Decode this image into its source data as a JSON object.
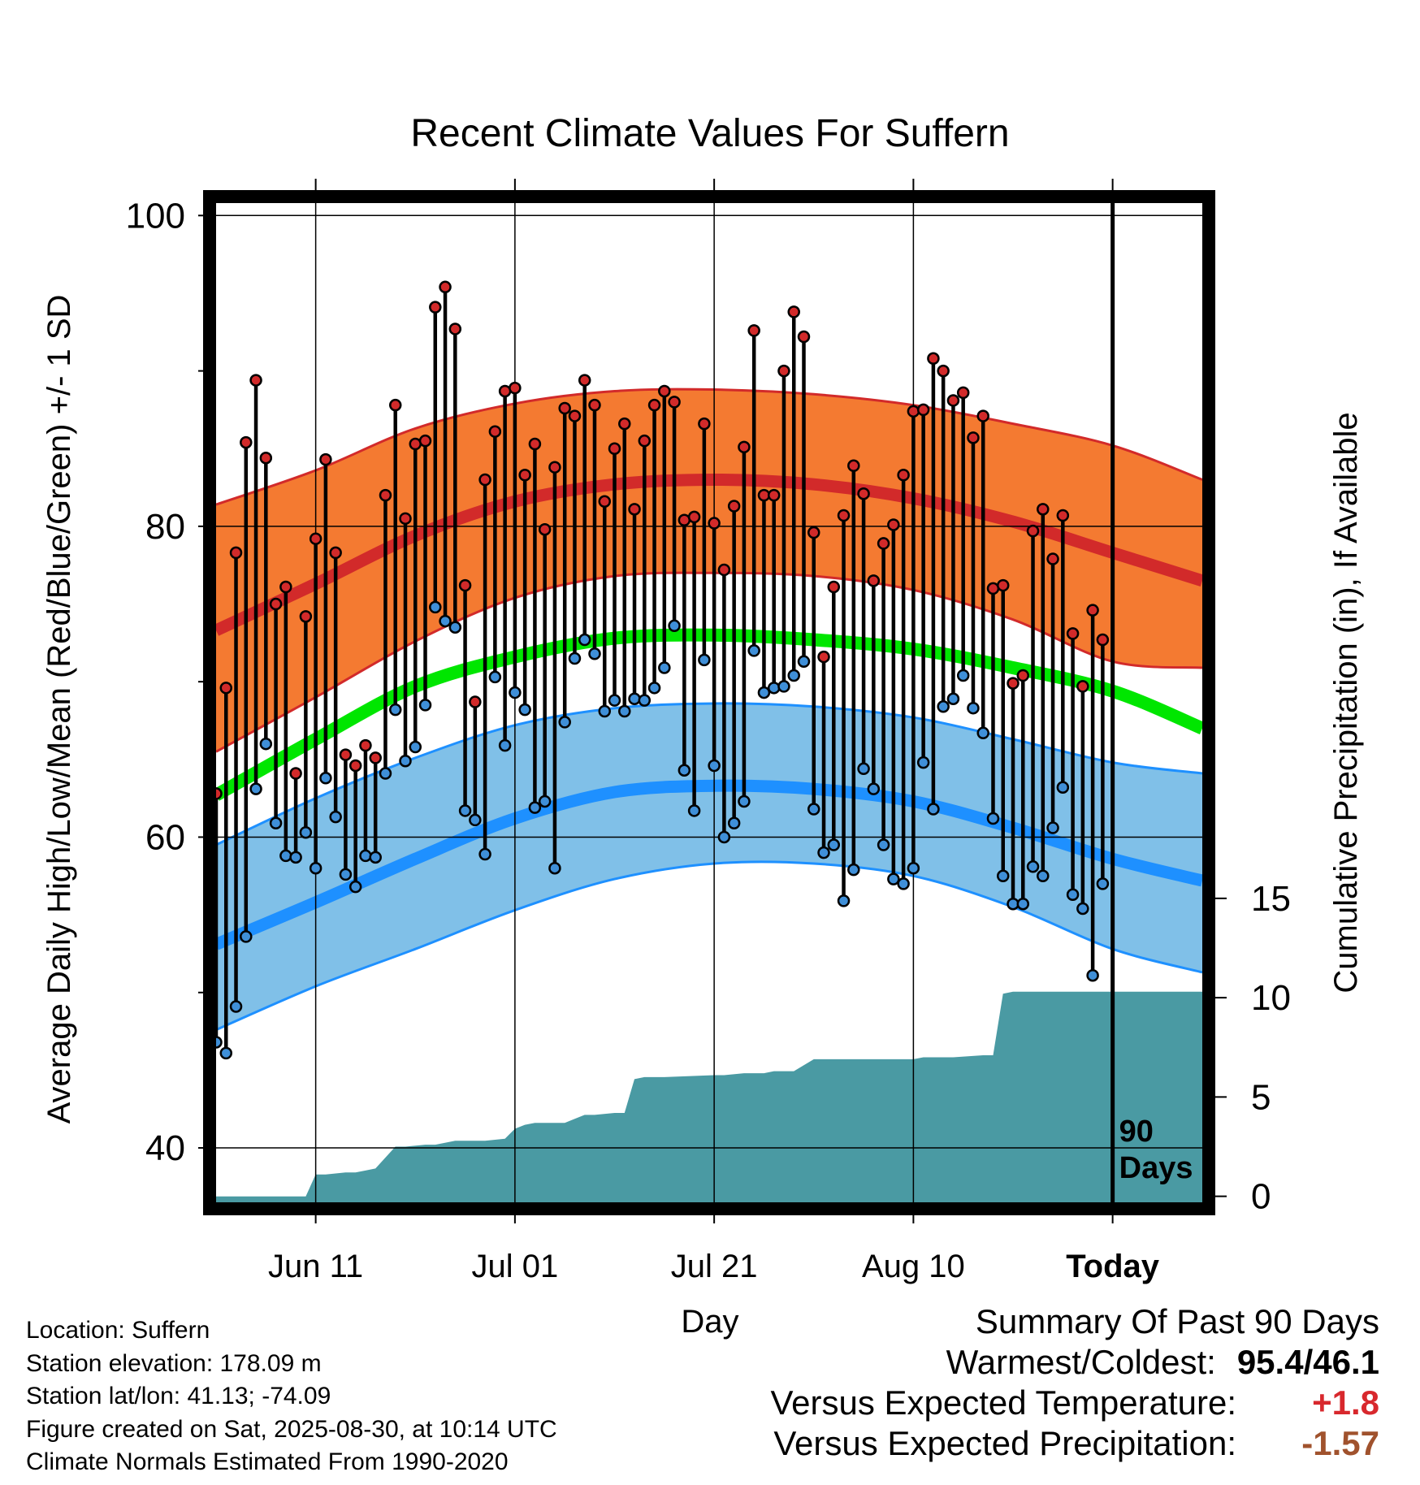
{
  "chart_data": {
    "type": "line",
    "title": "Recent Climate Values For Suffern",
    "xlabel": "Day",
    "ylabel": "Average Daily High/Low/Mean (Red/Blue/Green) +/- 1 SD",
    "y2label": "Cumulative Precipitation (in), If Available",
    "x_unit": "days before today",
    "xlim": [
      -90,
      9
    ],
    "ylim": [
      36.5,
      100.8
    ],
    "y_ticks": [
      "40",
      "60",
      "80",
      "100"
    ],
    "y_minor_ticks": [
      50,
      70,
      90
    ],
    "y2lim": [
      -0.3,
      50
    ],
    "y2_ticks": [
      "0",
      "5",
      "10",
      "15"
    ],
    "x_ticks": [
      {
        "label": "Jun 11",
        "x": -80
      },
      {
        "label": "Jul 01",
        "x": -60
      },
      {
        "label": "Jul 21",
        "x": -40
      },
      {
        "label": "Aug 10",
        "x": -20
      },
      {
        "label": "Today",
        "x": 0
      }
    ],
    "today_marker": {
      "x": 0,
      "label_line1": "90",
      "label_line2": "Days"
    },
    "grid": true,
    "normals": {
      "x": [
        -90,
        -80,
        -70,
        -60,
        -50,
        -40,
        -30,
        -20,
        -10,
        0,
        9
      ],
      "high_mean": [
        73.3,
        76.3,
        79.4,
        81.6,
        82.7,
        83.0,
        82.7,
        81.8,
        80.3,
        78.3,
        76.5
      ],
      "high_upper": [
        81.4,
        83.6,
        86.3,
        87.9,
        88.7,
        88.8,
        88.5,
        87.8,
        86.6,
        85.2,
        83.0
      ],
      "high_lower": [
        65.5,
        69.0,
        72.6,
        75.4,
        76.8,
        77.0,
        76.8,
        75.9,
        74.0,
        71.3,
        70.9
      ],
      "mean": [
        62.7,
        66.3,
        69.7,
        71.6,
        72.8,
        73.0,
        72.7,
        72.1,
        70.9,
        69.4,
        67.0
      ],
      "low_mean": [
        53.1,
        55.8,
        58.6,
        61.2,
        62.9,
        63.3,
        63.1,
        62.3,
        60.6,
        58.6,
        57.2
      ],
      "low_upper": [
        59.5,
        62.5,
        65.1,
        67.2,
        68.3,
        68.6,
        68.4,
        67.7,
        66.3,
        64.8,
        64.1
      ],
      "low_lower": [
        47.6,
        50.4,
        52.8,
        55.3,
        57.3,
        58.3,
        58.3,
        57.5,
        55.5,
        52.8,
        51.3
      ]
    },
    "daily": {
      "x": [
        -90,
        -89,
        -88,
        -87,
        -86,
        -85,
        -84,
        -83,
        -82,
        -81,
        -80,
        -79,
        -78,
        -77,
        -76,
        -75,
        -74,
        -73,
        -72,
        -71,
        -70,
        -69,
        -68,
        -67,
        -66,
        -65,
        -64,
        -63,
        -62,
        -61,
        -60,
        -59,
        -58,
        -57,
        -56,
        -55,
        -54,
        -53,
        -52,
        -51,
        -50,
        -49,
        -48,
        -47,
        -46,
        -45,
        -44,
        -43,
        -42,
        -41,
        -40,
        -39,
        -38,
        -37,
        -36,
        -35,
        -34,
        -33,
        -32,
        -31,
        -30,
        -29,
        -28,
        -27,
        -26,
        -25,
        -24,
        -23,
        -22,
        -21,
        -20,
        -19,
        -18,
        -17,
        -16,
        -15,
        -14,
        -13,
        -12,
        -11,
        -10,
        -9,
        -8,
        -7,
        -6,
        -5,
        -4,
        -3,
        -2,
        -1
      ],
      "high": [
        62.8,
        69.6,
        78.3,
        85.4,
        89.4,
        84.4,
        75.0,
        76.1,
        64.1,
        74.2,
        79.2,
        84.3,
        78.3,
        65.3,
        64.6,
        65.9,
        65.1,
        82.0,
        87.8,
        80.5,
        85.3,
        85.5,
        94.1,
        95.4,
        92.7,
        76.2,
        68.7,
        83.0,
        86.1,
        88.7,
        88.9,
        83.3,
        85.3,
        79.8,
        83.8,
        87.6,
        87.1,
        89.4,
        87.8,
        81.6,
        85.0,
        86.6,
        81.1,
        85.5,
        87.8,
        88.7,
        88.0,
        80.4,
        80.6,
        86.6,
        80.2,
        77.2,
        81.3,
        85.1,
        92.6,
        82.0,
        82.0,
        90.0,
        93.8,
        92.2,
        79.6,
        71.6,
        76.1,
        80.7,
        83.9,
        82.1,
        76.5,
        78.9,
        80.1,
        83.3,
        87.4,
        87.5,
        90.8,
        90.0,
        88.1,
        88.6,
        85.7,
        87.1,
        76.0,
        76.2,
        69.9,
        70.4,
        79.7,
        81.1,
        77.9,
        80.7,
        73.1,
        69.7,
        74.6,
        72.7
      ],
      "low": [
        46.8,
        46.1,
        49.1,
        53.6,
        63.1,
        66.0,
        60.9,
        58.8,
        58.7,
        60.3,
        58.0,
        63.8,
        61.3,
        57.6,
        56.8,
        58.8,
        58.7,
        64.1,
        68.2,
        64.9,
        65.8,
        68.5,
        74.8,
        73.9,
        73.5,
        61.7,
        61.1,
        58.9,
        70.3,
        65.9,
        69.3,
        68.2,
        61.9,
        62.3,
        58.0,
        67.4,
        71.5,
        72.7,
        71.8,
        68.1,
        68.8,
        68.1,
        68.9,
        68.8,
        69.6,
        70.9,
        73.6,
        64.3,
        61.7,
        71.4,
        64.6,
        60.0,
        60.9,
        62.3,
        72.0,
        69.3,
        69.6,
        69.7,
        70.4,
        71.3,
        61.8,
        59.0,
        59.5,
        55.9,
        57.9,
        64.4,
        63.1,
        59.5,
        57.3,
        57.0,
        58.0,
        64.8,
        61.8,
        68.4,
        68.9,
        70.4,
        68.3,
        66.7,
        61.2,
        57.5,
        55.7,
        55.7,
        58.1,
        57.5,
        60.6,
        63.2,
        56.3,
        55.4,
        51.1,
        57.0
      ]
    },
    "precip": {
      "x": [
        -90,
        -82,
        -81,
        -80,
        -79,
        -77,
        -76,
        -75,
        -74,
        -72,
        -71,
        -69,
        -68,
        -66,
        -64,
        -63,
        -61,
        -60,
        -59,
        -58,
        -57,
        -55,
        -54,
        -53,
        -52,
        -50,
        -49,
        -48,
        -47,
        -46,
        -45,
        -40,
        -39,
        -37,
        -36,
        -35,
        -34,
        -32,
        -31,
        -30,
        -29,
        -26,
        -25,
        -20,
        -19,
        -17,
        -16,
        -13,
        -12,
        -11,
        -10,
        9
      ],
      "y": [
        0,
        0,
        0,
        1.1,
        1.1,
        1.2,
        1.2,
        1.3,
        1.4,
        2.5,
        2.5,
        2.6,
        2.6,
        2.8,
        2.8,
        2.8,
        2.9,
        3.4,
        3.6,
        3.7,
        3.7,
        3.7,
        3.9,
        4.1,
        4.1,
        4.2,
        4.2,
        5.9,
        6.0,
        6.0,
        6.0,
        6.1,
        6.1,
        6.2,
        6.2,
        6.2,
        6.3,
        6.3,
        6.6,
        6.9,
        6.9,
        6.9,
        6.9,
        6.9,
        7.0,
        7.0,
        7.0,
        7.1,
        7.1,
        10.2,
        10.3,
        10.3
      ]
    }
  },
  "info": {
    "location": "Location: Suffern",
    "elevation": "Station elevation: 178.09 m",
    "latlon": "Station lat/lon: 41.13; -74.09",
    "created": "Figure created on Sat, 2025-08-30, at 10:14 UTC",
    "normals": "Climate Normals Estimated From 1990-2020"
  },
  "summary": {
    "heading": "Summary Of Past 90 Days",
    "warm_cold_label": "Warmest/Coldest:",
    "warm_cold_value": "95.4/46.1",
    "temp_label": "Versus Expected Temperature:",
    "temp_value": "+1.8",
    "precip_label": "Versus Expected Precipitation:",
    "precip_value": "-1.57",
    "colors": {
      "temp_value": "#d8282d",
      "precip_value": "#a0522d"
    }
  },
  "colors": {
    "high_band": "#f47a31",
    "high_line": "#d22a2a",
    "low_band": "#80c0e8",
    "low_line": "#1e90ff",
    "mean_line": "#00e600",
    "precip_fill": "#4a9aa3",
    "high_point": "#d22a2a",
    "low_point": "#3f8fd8"
  }
}
